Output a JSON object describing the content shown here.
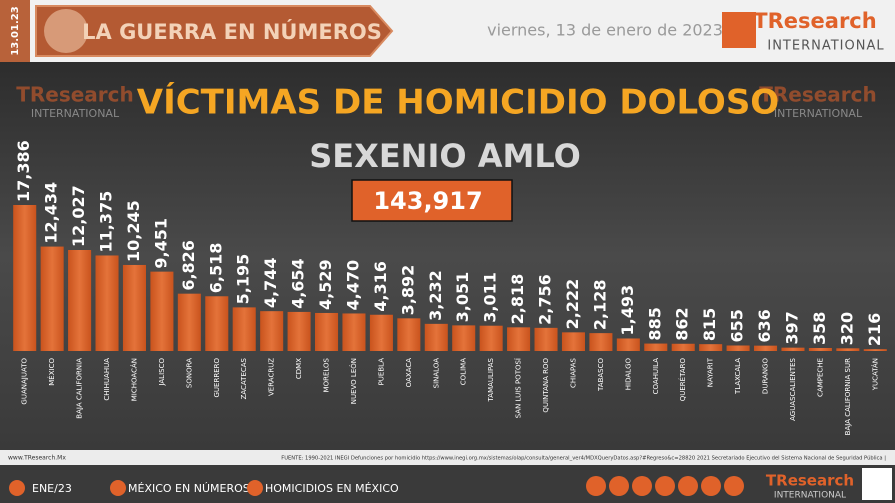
{
  "header": {
    "title": "LA GUERRA EN NÚMEROS",
    "date": "viernes, 13 de enero de 2023",
    "side_date": "13.01.23",
    "logo": "TResearch",
    "logo_sub": "INTERNATIONAL"
  },
  "chart_data": {
    "type": "bar",
    "title": "VÍCTIMAS DE HOMICIDIO DOLOSO",
    "subtitle": "SEXENIO AMLO",
    "total": "143,917",
    "color": "#d9622b",
    "categories": [
      "GUANAJUATO",
      "MÉXICO",
      "BAJA CALIFORNIA",
      "CHIHUAHUA",
      "MICHOACÁN",
      "JALISCO",
      "SONORA",
      "GUERRERO",
      "ZACATECAS",
      "VERACRUZ",
      "CDMX",
      "MORELOS",
      "NUEVO LEÓN",
      "PUEBLA",
      "OAXACA",
      "SINALOA",
      "COLIMA",
      "TAMAULIPAS",
      "SAN LUIS POTOSÍ",
      "QUINTANA ROO",
      "CHIAPAS",
      "TABASCO",
      "HIDALGO",
      "COAHUILA",
      "QUERÉTARO",
      "NAYARIT",
      "TLAXCALA",
      "DURANGO",
      "AGUASCALIENTES",
      "CAMPECHE",
      "BAJA CALIFORNIA SUR",
      "YUCATÁN"
    ],
    "values": [
      17386,
      12434,
      12027,
      11375,
      10245,
      9451,
      6826,
      6518,
      5195,
      4744,
      4654,
      4529,
      4470,
      4316,
      3892,
      3232,
      3051,
      3011,
      2818,
      2756,
      2222,
      2128,
      1493,
      885,
      862,
      815,
      655,
      636,
      397,
      358,
      320,
      216
    ],
    "value_labels": [
      "17,386",
      "12,434",
      "12,027",
      "11,375",
      "10,245",
      "9,451",
      "6,826",
      "6,518",
      "5,195",
      "4,744",
      "4,654",
      "4,529",
      "4,470",
      "4,316",
      "3,892",
      "3,232",
      "3,051",
      "3,011",
      "2,818",
      "2,756",
      "2,222",
      "2,128",
      "1,493",
      "885",
      "862",
      "815",
      "655",
      "636",
      "397",
      "358",
      "320",
      "216"
    ]
  },
  "footer": {
    "site": "www.TResearch.Mx",
    "source": "FUENTE: 1990-2021 INEGI Defunciones por homicidio https://www.inegi.org.mx/sistemas/olap/consulta/general_ver4/MDXQueryDatos.asp?#Regreso&c=28820  2021 Secretariado Ejecutivo del Sistema Nacional de Seguridad Pública |",
    "nav": [
      "ENE/23",
      "MÉXICO EN NÚMEROS",
      "HOMICIDIOS EN MÉXICO"
    ]
  }
}
